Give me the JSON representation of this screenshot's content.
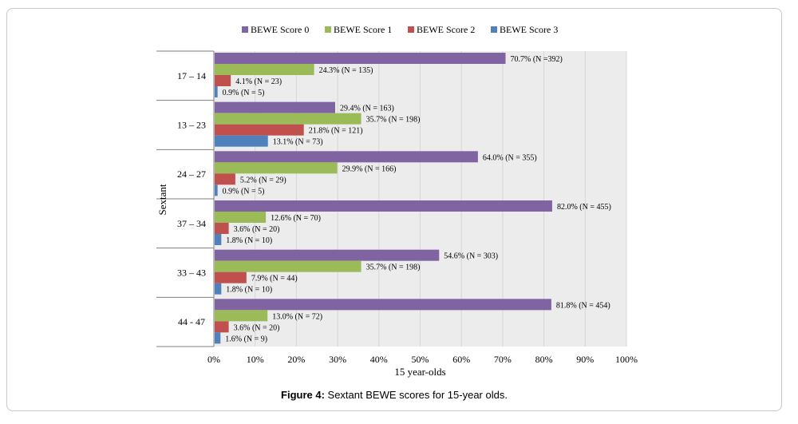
{
  "caption": {
    "label": "Figure 4:",
    "text": " Sextant BEWE scores for 15-year olds."
  },
  "chart_data": {
    "type": "bar",
    "orientation": "horizontal",
    "categories": [
      "17 – 14",
      "13 – 23",
      "24 – 27",
      "37 – 34",
      "33 – 43",
      "44 - 47"
    ],
    "ylabel": "Sextant",
    "xlabel": "15 year-olds",
    "xlim": [
      0,
      100
    ],
    "xticks": [
      "0%",
      "10%",
      "20%",
      "30%",
      "40%",
      "50%",
      "60%",
      "70%",
      "80%",
      "90%",
      "100%"
    ],
    "grid": true,
    "legend_position": "top",
    "series": [
      {
        "name": "BEWE Score 0",
        "color": "#8064a2",
        "values": [
          70.7,
          29.4,
          64.0,
          82.0,
          54.6,
          81.8
        ],
        "labels": [
          "70.7% (N =392)",
          "29.4% (N = 163)",
          "64.0% (N = 355)",
          "82.0% (N = 455)",
          "54.6% (N = 303)",
          "81.8% (N = 454)"
        ]
      },
      {
        "name": "BEWE Score 1",
        "color": "#9bbb59",
        "values": [
          24.3,
          35.7,
          29.9,
          12.6,
          35.7,
          13.0
        ],
        "labels": [
          "24.3% (N = 135)",
          "35.7% (N = 198)",
          "29.9% (N = 166)",
          "12.6% (N = 70)",
          "35.7% (N = 198)",
          "13.0% (N = 72)"
        ]
      },
      {
        "name": "BEWE Score 2",
        "color": "#c0504d",
        "values": [
          4.1,
          21.8,
          5.2,
          3.6,
          7.9,
          3.6
        ],
        "labels": [
          "4.1% (N = 23)",
          "21.8% (N = 121)",
          "5.2% (N = 29)",
          "3.6% (N = 20)",
          "7.9% (N = 44)",
          "3.6% (N = 20)"
        ]
      },
      {
        "name": "BEWE Score 3",
        "color": "#4f81bd",
        "values": [
          0.9,
          13.1,
          0.9,
          1.8,
          1.8,
          1.6
        ],
        "labels": [
          "0.9% (N = 5)",
          "13.1% (N = 73)",
          "0.9% (N = 5)",
          "1.8% (N = 10)",
          "1.8% (N = 10)",
          "1.6% (N = 9)"
        ]
      }
    ]
  }
}
